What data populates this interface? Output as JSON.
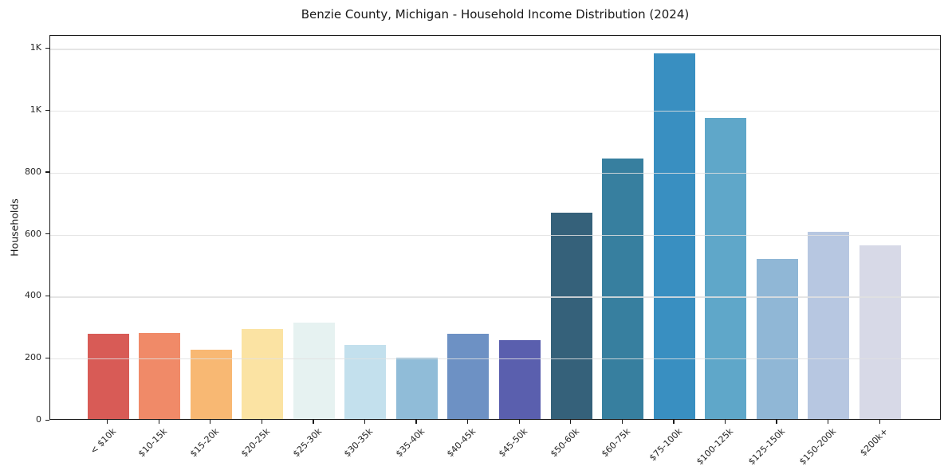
{
  "chart_data": {
    "type": "bar",
    "title": "Benzie County, Michigan - Household Income Distribution (2024)",
    "xlabel": "",
    "ylabel": "Households",
    "categories": [
      "< $10k",
      "$10-15k",
      "$15-20k",
      "$20-25k",
      "$25-30k",
      "$30-35k",
      "$35-40k",
      "$40-45k",
      "$45-50k",
      "$50-60k",
      "$60-75k",
      "$75-100k",
      "$100-125k",
      "$125-150k",
      "$150-200k",
      "$200k+"
    ],
    "values": [
      275,
      278,
      223,
      290,
      310,
      239,
      199,
      274,
      255,
      665,
      840,
      1180,
      971,
      516,
      604,
      561
    ],
    "bar_colors": [
      "#d85b56",
      "#f08a68",
      "#f8b873",
      "#fbe3a3",
      "#e6f2f1",
      "#c3e0ed",
      "#90bcd8",
      "#6d91c4",
      "#5a5fae",
      "#35617a",
      "#377f9f",
      "#398fc1",
      "#5fa7c9",
      "#90b7d6",
      "#b7c7e1",
      "#d7d9e7"
    ],
    "ylim": [
      0,
      1242
    ],
    "yticks": [
      {
        "value": 0,
        "label": "0"
      },
      {
        "value": 200,
        "label": "200"
      },
      {
        "value": 400,
        "label": "400"
      },
      {
        "value": 600,
        "label": "600"
      },
      {
        "value": 800,
        "label": "800"
      },
      {
        "value": 1000,
        "label": "1K"
      },
      {
        "value": 1200,
        "label": "1K"
      }
    ],
    "grid": "horizontal",
    "legend": "none",
    "background": "#ffffff",
    "x_tick_rotation_deg": 45
  }
}
